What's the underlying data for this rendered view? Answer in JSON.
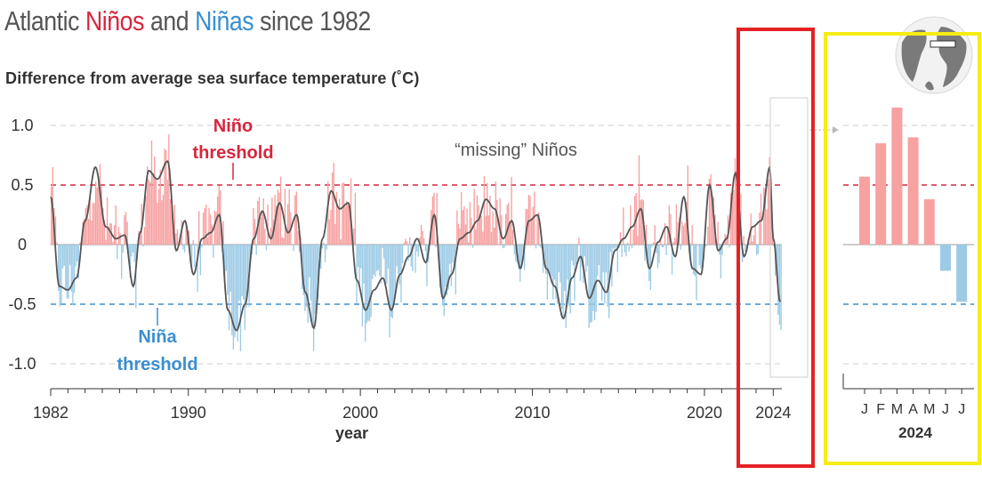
{
  "title": {
    "part1": "Atlantic ",
    "nino": "Niños",
    "part2": " and ",
    "nina": "Niñas",
    "part3": " since 1982"
  },
  "subtitle": "Difference from average sea surface temperature (˚C)",
  "colors": {
    "positive": "#f7a1a1",
    "negative": "#9dcbe6",
    "smooth_line": "#555555",
    "nino_threshold": "#d7263d",
    "nina_threshold": "#3b8ed0",
    "highlight_red": "#e52125",
    "highlight_yellow": "#f6ec16"
  },
  "annotations": {
    "nino_line1": "Niño",
    "nino_line2": "threshold",
    "nina_line1": "Niña",
    "nina_line2": "threshold",
    "missing": "“missing” Niños"
  },
  "chart_data": [
    {
      "type": "bar",
      "title": "Atlantic Niños and Niñas since 1982",
      "ylabel": "Difference from average sea surface temperature (˚C)",
      "xlabel": "year",
      "x_ticks": [
        "1982",
        "1990",
        "2000",
        "2010",
        "2020",
        "2024"
      ],
      "y_ticks": [
        "1.0",
        "0.5",
        "0",
        "-0.5",
        "-1.0"
      ],
      "ylim": [
        -1.2,
        1.15
      ],
      "xlim": [
        1982,
        2024.5
      ],
      "thresholds": {
        "nino": 0.5,
        "nina": -0.5
      },
      "grid": "dashed horizontal at ±1.0",
      "series": [
        {
          "type": "smoothed_line",
          "x": [
            1982.0,
            1982.5,
            1983.0,
            1983.5,
            1984.0,
            1984.6,
            1985.2,
            1985.8,
            1986.3,
            1986.8,
            1987.2,
            1987.7,
            1988.2,
            1988.8,
            1989.3,
            1989.8,
            1990.3,
            1990.8,
            1991.3,
            1991.8,
            1992.3,
            1992.8,
            1993.3,
            1993.8,
            1994.3,
            1994.8,
            1995.3,
            1995.8,
            1996.3,
            1996.8,
            1997.3,
            1997.8,
            1998.3,
            1998.8,
            1999.3,
            1999.8,
            2000.3,
            2000.8,
            2001.3,
            2001.8,
            2002.3,
            2002.8,
            2003.3,
            2003.8,
            2004.3,
            2004.8,
            2005.3,
            2005.8,
            2006.3,
            2006.8,
            2007.3,
            2007.8,
            2008.3,
            2008.8,
            2009.3,
            2009.8,
            2010.3,
            2010.8,
            2011.3,
            2011.8,
            2012.3,
            2012.8,
            2013.3,
            2013.8,
            2014.3,
            2014.8,
            2015.3,
            2015.8,
            2016.3,
            2016.8,
            2017.3,
            2017.8,
            2018.3,
            2018.8,
            2019.3,
            2019.8,
            2020.3,
            2020.8,
            2021.3,
            2021.8,
            2022.3,
            2022.8,
            2023.3,
            2023.8,
            2024.0,
            2024.4
          ],
          "values": [
            0.4,
            -0.35,
            -0.38,
            -0.28,
            0.2,
            0.65,
            0.15,
            0.05,
            0.08,
            -0.35,
            0.1,
            0.62,
            0.55,
            0.7,
            -0.05,
            0.2,
            -0.25,
            0.05,
            0.1,
            0.25,
            -0.55,
            -0.72,
            -0.5,
            0.05,
            0.28,
            0.05,
            0.35,
            0.1,
            0.25,
            -0.4,
            -0.7,
            0.05,
            0.45,
            0.3,
            0.35,
            -0.3,
            -0.55,
            -0.38,
            -0.28,
            -0.55,
            -0.25,
            -0.1,
            0.05,
            -0.15,
            0.25,
            -0.45,
            -0.25,
            0.05,
            0.1,
            0.2,
            0.38,
            0.3,
            0.05,
            0.2,
            -0.2,
            0.2,
            0.25,
            -0.2,
            -0.35,
            -0.62,
            -0.28,
            -0.1,
            -0.45,
            -0.3,
            -0.4,
            -0.05,
            0.05,
            0.15,
            0.3,
            -0.2,
            0.02,
            0.15,
            -0.1,
            0.4,
            -0.2,
            -0.25,
            0.5,
            -0.05,
            0.05,
            0.6,
            -0.1,
            0.15,
            0.2,
            0.65,
            0.05,
            -0.48
          ]
        },
        {
          "type": "monthly_bars",
          "note": "pink when positive, blue when negative"
        }
      ]
    },
    {
      "type": "bar",
      "title": "2024",
      "xlabel": "2024",
      "categories": [
        "J",
        "F",
        "M",
        "A",
        "M",
        "J",
        "J"
      ],
      "values": [
        0.57,
        0.85,
        1.15,
        0.9,
        0.38,
        -0.22,
        -0.48
      ],
      "ylim": [
        -1.2,
        1.15
      ]
    }
  ]
}
